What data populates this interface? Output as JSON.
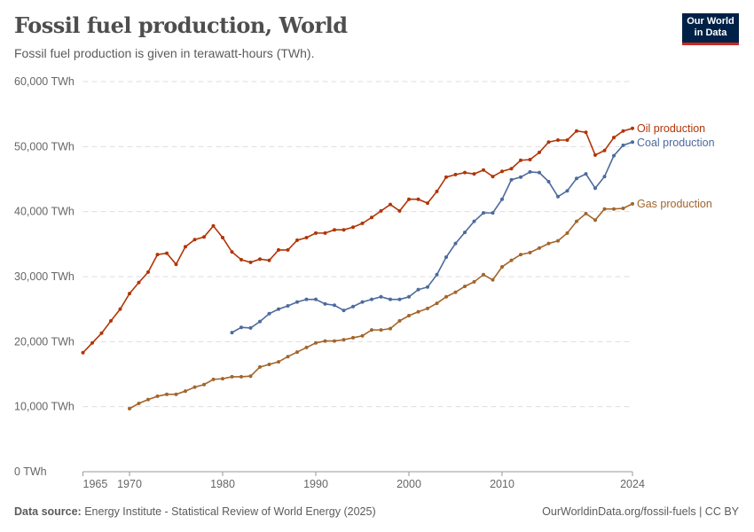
{
  "title": "Fossil fuel production, World",
  "subtitle": "Fossil fuel production is given in terawatt-hours (TWh).",
  "logo": {
    "line1": "Our World",
    "line2": "in Data",
    "bg": "#002147",
    "accent": "#ce261e"
  },
  "footer": {
    "source_label": "Data source:",
    "source_text": "Energy Institute - Statistical Review of World Energy (2025)",
    "right": "OurWorldinData.org/fossil-fuels | CC BY"
  },
  "chart_data": {
    "type": "line",
    "title": "Fossil fuel production, World",
    "xlim": [
      1965,
      2024
    ],
    "ylim": [
      0,
      60000
    ],
    "grid": true,
    "x_ticks": [
      "1965",
      "1970",
      "1980",
      "1990",
      "2000",
      "2010",
      "2024"
    ],
    "y_ticks": [
      "0 TWh",
      "10,000 TWh",
      "20,000 TWh",
      "30,000 TWh",
      "40,000 TWh",
      "50,000 TWh",
      "60,000 TWh"
    ],
    "legend": "right-end labels",
    "series": [
      {
        "name": "Oil production",
        "color": "#b13507",
        "start": 1965,
        "values": [
          18300,
          19800,
          21300,
          23200,
          25000,
          27400,
          29100,
          30700,
          33400,
          33600,
          31900,
          34600,
          35700,
          36100,
          37800,
          36000,
          33800,
          32600,
          32200,
          32700,
          32500,
          34100,
          34100,
          35600,
          36000,
          36700,
          36700,
          37200,
          37200,
          37600,
          38200,
          39100,
          40100,
          41100,
          40100,
          41900,
          41900,
          41300,
          43100,
          45300,
          45700,
          46000,
          45800,
          46400,
          45400,
          46200,
          46600,
          47900,
          48000,
          49100,
          50700,
          51000,
          51000,
          52400,
          52200,
          48700,
          49400,
          51400,
          52400,
          52800
        ]
      },
      {
        "name": "Coal production",
        "color": "#4c6a9c",
        "start": 1981,
        "values": [
          21400,
          22200,
          22100,
          23100,
          24300,
          25000,
          25500,
          26100,
          26500,
          26500,
          25800,
          25600,
          24800,
          25400,
          26100,
          26500,
          26900,
          26500,
          26500,
          26900,
          28000,
          28400,
          30300,
          33000,
          35100,
          36800,
          38500,
          39800,
          39800,
          41900,
          44900,
          45300,
          46100,
          46000,
          44600,
          42300,
          43200,
          45100,
          45800,
          43600,
          45400,
          48600,
          50200,
          50700
        ]
      },
      {
        "name": "Gas production",
        "color": "#a2652b",
        "start": 1970,
        "values": [
          9700,
          10500,
          11100,
          11600,
          11900,
          11900,
          12400,
          13000,
          13400,
          14200,
          14300,
          14600,
          14600,
          14700,
          16100,
          16500,
          16900,
          17700,
          18400,
          19100,
          19800,
          20100,
          20100,
          20300,
          20600,
          20900,
          21800,
          21800,
          22000,
          23200,
          24000,
          24600,
          25100,
          25900,
          26900,
          27600,
          28500,
          29200,
          30300,
          29500,
          31500,
          32500,
          33400,
          33700,
          34400,
          35100,
          35500,
          36700,
          38500,
          39700,
          38700,
          40400,
          40400,
          40500,
          41200
        ]
      }
    ]
  }
}
